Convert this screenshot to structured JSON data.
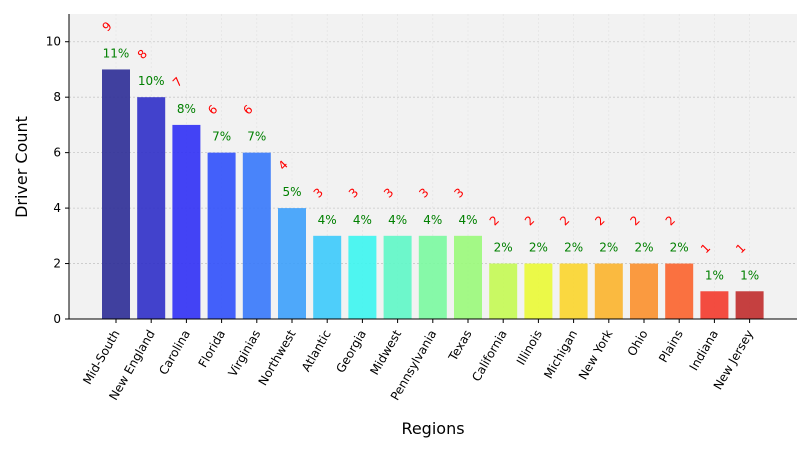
{
  "chart_data": {
    "type": "bar",
    "title": "",
    "xlabel": "Regions",
    "ylabel": "Driver Count",
    "ylim": [
      0,
      11
    ],
    "yticks": [
      0,
      2,
      4,
      6,
      8,
      10
    ],
    "grid": true,
    "categories": [
      "Mid-South",
      "New England",
      "Carolina",
      "Florida",
      "Virginias",
      "Northwest",
      "Atlantic",
      "Georgia",
      "Midwest",
      "Pennsylvania",
      "Texas",
      "California",
      "Illinois",
      "Michigan",
      "New York",
      "Ohio",
      "Plains",
      "Indiana",
      "New Jersey"
    ],
    "values": [
      9,
      8,
      7,
      6,
      6,
      4,
      3,
      3,
      3,
      3,
      3,
      2,
      2,
      2,
      2,
      2,
      2,
      1,
      1
    ],
    "count_labels": [
      "9",
      "8",
      "7",
      "6",
      "6",
      "4",
      "3",
      "3",
      "3",
      "3",
      "3",
      "2",
      "2",
      "2",
      "2",
      "2",
      "2",
      "1",
      "1"
    ],
    "percent_labels": [
      "11%",
      "10%",
      "8%",
      "7%",
      "7%",
      "5%",
      "4%",
      "4%",
      "4%",
      "4%",
      "4%",
      "2%",
      "2%",
      "2%",
      "2%",
      "2%",
      "2%",
      "1%",
      "1%"
    ],
    "bar_colors": [
      "#2c2c96",
      "#2f2fc8",
      "#3030f5",
      "#3050fb",
      "#3678fb",
      "#3ca0fb",
      "#3ccafb",
      "#3cf5ef",
      "#5ef7c6",
      "#7af9a0",
      "#9af97a",
      "#c4f953",
      "#eaf935",
      "#fbd52c",
      "#fbb42c",
      "#fb902c",
      "#fb632c",
      "#f33a2c",
      "#c02c2c"
    ],
    "colors": {
      "plot_background": "#f2f2f2",
      "grid": "#c8c8c8",
      "count_label": "#ff0000",
      "percent_label": "#008000"
    }
  }
}
